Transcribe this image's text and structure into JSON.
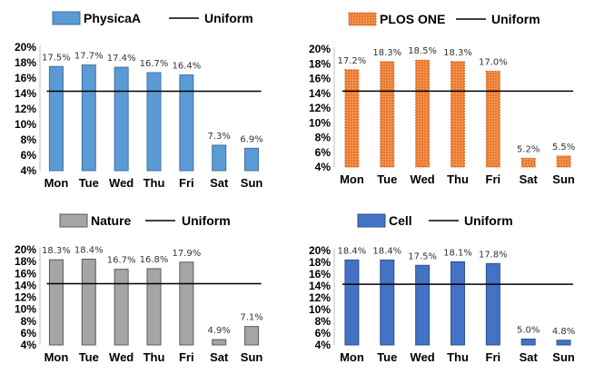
{
  "chart_data": [
    {
      "type": "bar",
      "title": "",
      "xlabel": "",
      "ylabel": "",
      "categories": [
        "Mon",
        "Tue",
        "Wed",
        "Thu",
        "Fri",
        "Sat",
        "Sun"
      ],
      "series": [
        {
          "name": "PhysicaA",
          "values": [
            17.5,
            17.7,
            17.4,
            16.7,
            16.4,
            7.3,
            6.9
          ]
        }
      ],
      "value_labels": [
        "17.5%",
        "17.7%",
        "17.4%",
        "16.7%",
        "16.4%",
        "7.3%",
        "6.9%"
      ],
      "uniform": {
        "name": "Uniform",
        "value": 14.29
      },
      "ylim": [
        4,
        20
      ],
      "yticks": [
        4,
        6,
        8,
        10,
        12,
        14,
        16,
        18,
        20
      ],
      "ytick_labels": [
        "4%",
        "6%",
        "8%",
        "10%",
        "12%",
        "14%",
        "16%",
        "18%",
        "20%"
      ],
      "colors": {
        "bar": "#5b9bd5",
        "edge": "#41719c",
        "line": "#000000"
      },
      "pattern": "solid",
      "legend": "top"
    },
    {
      "type": "bar",
      "title": "",
      "xlabel": "",
      "ylabel": "",
      "categories": [
        "Mon",
        "Tue",
        "Wed",
        "Thu",
        "Fri",
        "Sat",
        "Sun"
      ],
      "series": [
        {
          "name": "PLOS ONE",
          "values": [
            17.2,
            18.3,
            18.5,
            18.3,
            17.0,
            5.2,
            5.5
          ]
        }
      ],
      "value_labels": [
        "17.2%",
        "18.3%",
        "18.5%",
        "18.3%",
        "17.0%",
        "5.2%",
        "5.5%"
      ],
      "uniform": {
        "name": "Uniform",
        "value": 14.29
      },
      "ylim": [
        4,
        20
      ],
      "yticks": [
        4,
        6,
        8,
        10,
        12,
        14,
        16,
        18,
        20
      ],
      "ytick_labels": [
        "4%",
        "6%",
        "8%",
        "10%",
        "12%",
        "14%",
        "16%",
        "18%",
        "20%"
      ],
      "colors": {
        "bar": "#ed7d31",
        "edge": "#c55a11",
        "line": "#000000"
      },
      "pattern": "dotted",
      "legend": "top"
    },
    {
      "type": "bar",
      "title": "",
      "xlabel": "",
      "ylabel": "",
      "categories": [
        "Mon",
        "Tue",
        "Wed",
        "Thu",
        "Fri",
        "Sat",
        "Sun"
      ],
      "series": [
        {
          "name": "Nature",
          "values": [
            18.3,
            18.4,
            16.7,
            16.8,
            17.9,
            4.9,
            7.1
          ]
        }
      ],
      "value_labels": [
        "18.3%",
        "18.4%",
        "16.7%",
        "16.8%",
        "17.9%",
        "4.9%",
        "7.1%"
      ],
      "uniform": {
        "name": "Uniform",
        "value": 14.29
      },
      "ylim": [
        4,
        20
      ],
      "yticks": [
        4,
        6,
        8,
        10,
        12,
        14,
        16,
        18,
        20
      ],
      "ytick_labels": [
        "4%",
        "6%",
        "8%",
        "10%",
        "12%",
        "14%",
        "16%",
        "18%",
        "20%"
      ],
      "colors": {
        "bar": "#a5a5a5",
        "edge": "#595959",
        "line": "#000000"
      },
      "pattern": "solid",
      "legend": "top"
    },
    {
      "type": "bar",
      "title": "",
      "xlabel": "",
      "ylabel": "",
      "categories": [
        "Mon",
        "Tue",
        "Wed",
        "Thu",
        "Fri",
        "Sat",
        "Sun"
      ],
      "series": [
        {
          "name": "Cell",
          "values": [
            18.4,
            18.4,
            17.5,
            18.1,
            17.8,
            5.0,
            4.8
          ]
        }
      ],
      "value_labels": [
        "18.4%",
        "18.4%",
        "17.5%",
        "18.1%",
        "17.8%",
        "5.0%",
        "4.8%"
      ],
      "uniform": {
        "name": "Uniform",
        "value": 14.29
      },
      "ylim": [
        4,
        20
      ],
      "yticks": [
        4,
        6,
        8,
        10,
        12,
        14,
        16,
        18,
        20
      ],
      "ytick_labels": [
        "4%",
        "6%",
        "8%",
        "10%",
        "12%",
        "14%",
        "16%",
        "18%",
        "20%"
      ],
      "colors": {
        "bar": "#4472c4",
        "edge": "#2f528f",
        "line": "#000000"
      },
      "pattern": "solid",
      "legend": "top"
    }
  ]
}
